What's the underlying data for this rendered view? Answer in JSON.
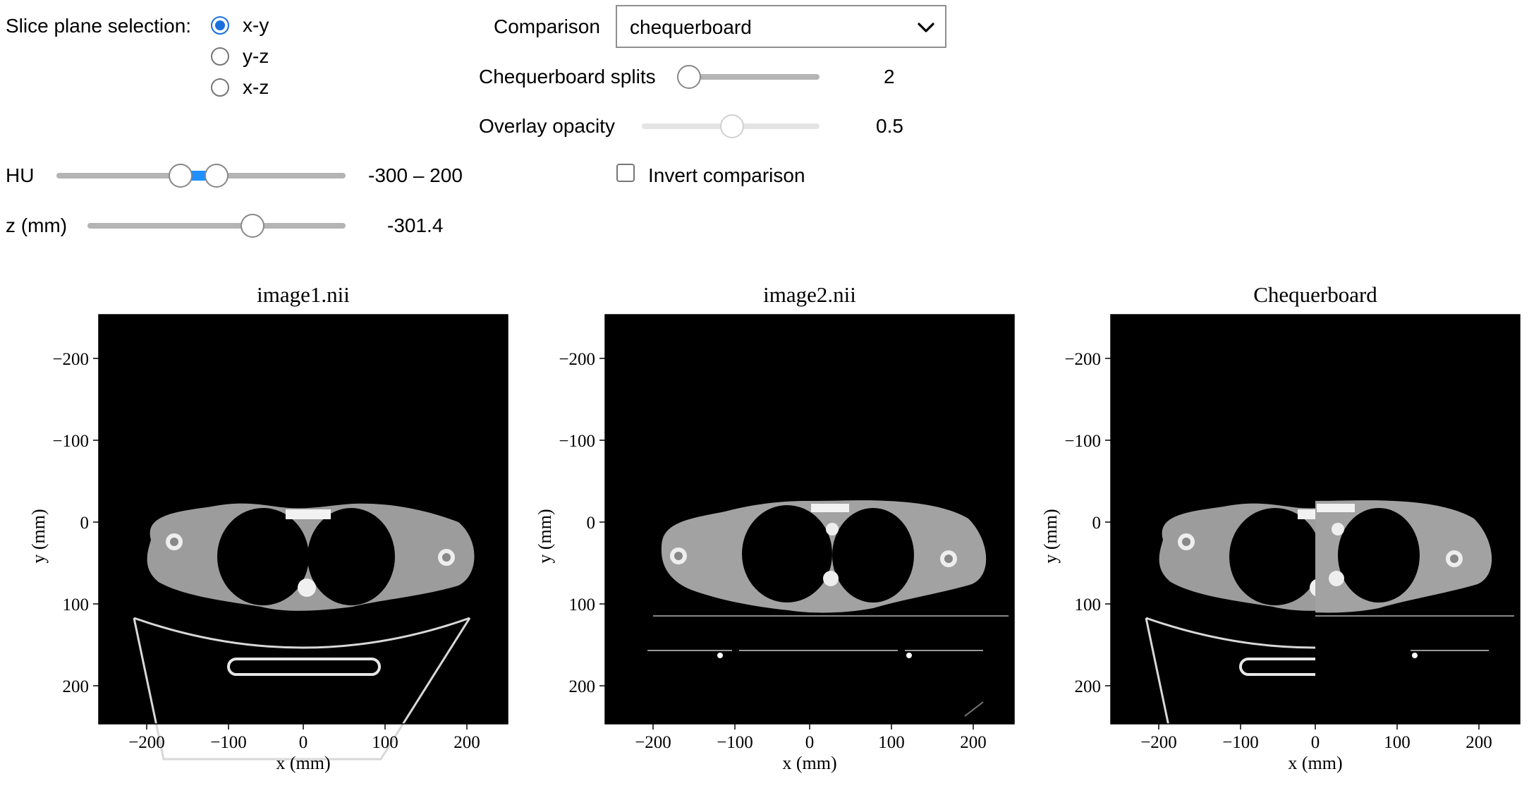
{
  "controls": {
    "slice_plane": {
      "label": "Slice plane selection:",
      "options": [
        "x-y",
        "y-z",
        "x-z"
      ],
      "selected": "x-y"
    },
    "comparison": {
      "label": "Comparison",
      "value": "chequerboard"
    },
    "chequerboard_splits": {
      "label": "Chequerboard splits",
      "value": "2"
    },
    "overlay_opacity": {
      "label": "Overlay opacity",
      "value": "0.5"
    },
    "invert_comparison": {
      "label": "Invert comparison",
      "checked": false
    },
    "hu": {
      "label": "HU",
      "value": "-300 – 200"
    },
    "z": {
      "label": "z (mm)",
      "value": "-301.4"
    }
  },
  "plots": [
    {
      "title": "image1.nii",
      "xlabel": "x (mm)",
      "ylabel": "y (mm)",
      "xticks": [
        "−200",
        "−100",
        "0",
        "100",
        "200"
      ],
      "yticks": [
        "−200",
        "−100",
        "0",
        "100",
        "200"
      ]
    },
    {
      "title": "image2.nii",
      "xlabel": "x (mm)",
      "ylabel": "y (mm)",
      "xticks": [
        "−200",
        "−100",
        "0",
        "100",
        "200"
      ],
      "yticks": [
        "−200",
        "−100",
        "0",
        "100",
        "200"
      ]
    },
    {
      "title": "Chequerboard",
      "xlabel": "x (mm)",
      "ylabel": "y (mm)",
      "xticks": [
        "−200",
        "−100",
        "0",
        "100",
        "200"
      ],
      "yticks": [
        "−200",
        "−100",
        "0",
        "100",
        "200"
      ]
    }
  ],
  "colors": {
    "accent": "#1a6fe0",
    "range_fill": "#1e90ff",
    "image_background": "#000000"
  }
}
